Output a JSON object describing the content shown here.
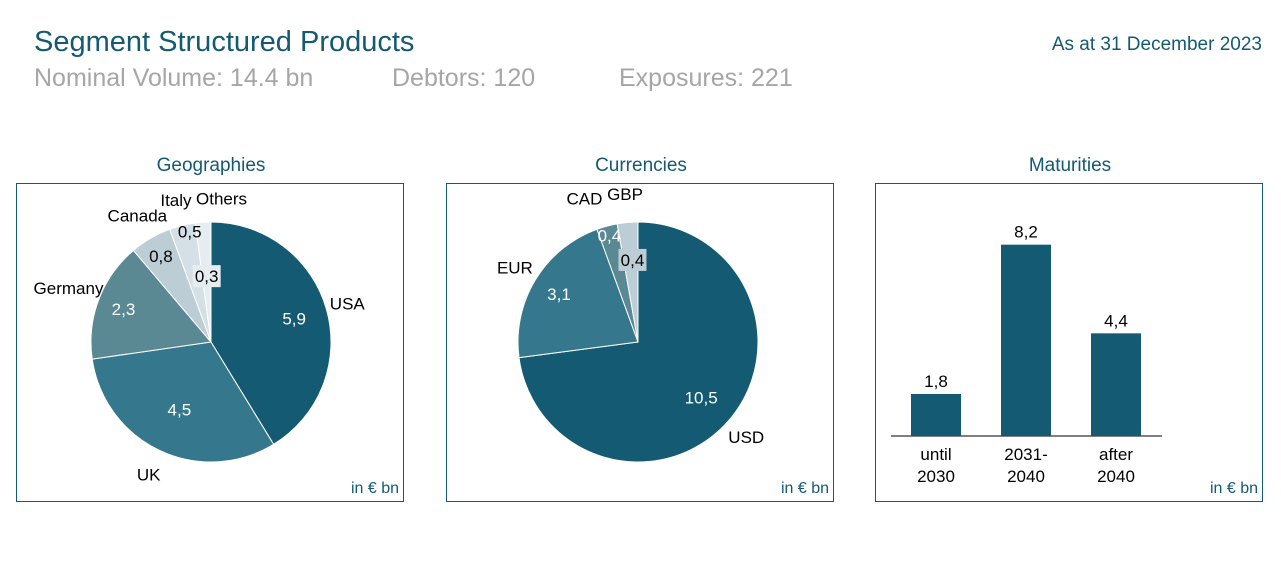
{
  "header": {
    "title": "Segment Structured Products",
    "date": "As at 31 December 2023",
    "nominal_volume": "Nominal Volume: 14.4 bn",
    "debtors": "Debtors: 120",
    "exposures": "Exposures: 221"
  },
  "colors": {
    "dark": "#135a72",
    "mid": "#35788d",
    "muted": "#5a8893",
    "light": "#bccdd5",
    "lighter": "#d4e0e5",
    "lightest": "#e6edf1",
    "text": "#000000"
  },
  "chart_data": [
    {
      "type": "pie",
      "title": "Geographies",
      "unit": "in € bn",
      "slices": [
        {
          "name": "USA",
          "value": 5.9,
          "label": "5,9",
          "color": "#135a72"
        },
        {
          "name": "UK",
          "value": 4.5,
          "label": "4,5",
          "color": "#35788d"
        },
        {
          "name": "Germany",
          "value": 2.3,
          "label": "2,3",
          "color": "#5a8893"
        },
        {
          "name": "Canada",
          "value": 0.8,
          "label": "0,8",
          "color": "#bccdd5"
        },
        {
          "name": "Italy",
          "value": 0.5,
          "label": "0,5",
          "color": "#d4e0e5"
        },
        {
          "name": "Others",
          "value": 0.3,
          "label": "0,3",
          "color": "#e6edf1"
        }
      ]
    },
    {
      "type": "pie",
      "title": "Currencies",
      "unit": "in € bn",
      "slices": [
        {
          "name": "USD",
          "value": 10.5,
          "label": "10,5",
          "color": "#135a72"
        },
        {
          "name": "EUR",
          "value": 3.1,
          "label": "3,1",
          "color": "#35788d"
        },
        {
          "name": "CAD",
          "value": 0.4,
          "label": "0,4",
          "color": "#5a8893"
        },
        {
          "name": "GBP",
          "value": 0.4,
          "label": "0,4",
          "color": "#bccdd5"
        }
      ]
    },
    {
      "type": "bar",
      "title": "Maturities",
      "unit": "in € bn",
      "categories": [
        "until 2030",
        "2031-2040",
        "after 2040"
      ],
      "category_lines": [
        [
          "until",
          "2030"
        ],
        [
          "2031-",
          "2040"
        ],
        [
          "after",
          "2040"
        ]
      ],
      "values": [
        1.8,
        8.2,
        4.4
      ],
      "labels": [
        "1,8",
        "8,2",
        "4,4"
      ],
      "color": "#135a72"
    }
  ]
}
